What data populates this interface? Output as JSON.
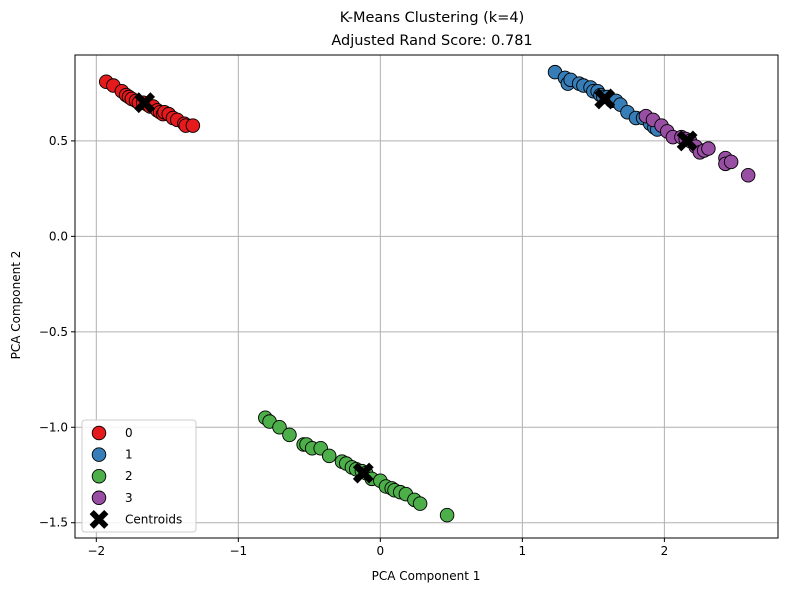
{
  "chart_data": {
    "type": "scatter",
    "title": "K-Means Clustering (k=4)",
    "subtitle": "Adjusted Rand Score: 0.781",
    "xlabel": "PCA Component 1",
    "ylabel": "PCA Component 2",
    "xlim": [
      -2.15,
      2.8
    ],
    "ylim": [
      -1.58,
      0.95
    ],
    "xticks": [
      -2,
      -1,
      0,
      1,
      2
    ],
    "yticks": [
      -1.5,
      -1.0,
      -0.5,
      0.0,
      0.5
    ],
    "xtick_labels": [
      "−2",
      "−1",
      "0",
      "1",
      "2"
    ],
    "ytick_labels": [
      "−1.5",
      "−1.0",
      "−0.5",
      "0.0",
      "0.5"
    ],
    "grid": true,
    "legend_position": "lower-left",
    "series": [
      {
        "name": "0",
        "color": "#e41a1c",
        "points": [
          [
            -1.93,
            0.81
          ],
          [
            -1.88,
            0.79
          ],
          [
            -1.82,
            0.76
          ],
          [
            -1.79,
            0.74
          ],
          [
            -1.77,
            0.73
          ],
          [
            -1.75,
            0.72
          ],
          [
            -1.72,
            0.71
          ],
          [
            -1.7,
            0.7
          ],
          [
            -1.67,
            0.7
          ],
          [
            -1.64,
            0.69
          ],
          [
            -1.62,
            0.68
          ],
          [
            -1.6,
            0.68
          ],
          [
            -1.57,
            0.66
          ],
          [
            -1.55,
            0.65
          ],
          [
            -1.53,
            0.64
          ],
          [
            -1.52,
            0.65
          ],
          [
            -1.49,
            0.64
          ],
          [
            -1.46,
            0.62
          ],
          [
            -1.43,
            0.61
          ],
          [
            -1.38,
            0.59
          ],
          [
            -1.37,
            0.58
          ],
          [
            -1.32,
            0.58
          ]
        ]
      },
      {
        "name": "1",
        "color": "#377eb8",
        "points": [
          [
            1.23,
            0.86
          ],
          [
            1.3,
            0.83
          ],
          [
            1.32,
            0.8
          ],
          [
            1.34,
            0.82
          ],
          [
            1.4,
            0.8
          ],
          [
            1.43,
            0.79
          ],
          [
            1.48,
            0.78
          ],
          [
            1.5,
            0.76
          ],
          [
            1.53,
            0.76
          ],
          [
            1.55,
            0.74
          ],
          [
            1.57,
            0.73
          ],
          [
            1.6,
            0.73
          ],
          [
            1.63,
            0.71
          ],
          [
            1.66,
            0.71
          ],
          [
            1.69,
            0.69
          ],
          [
            1.74,
            0.65
          ],
          [
            1.8,
            0.62
          ],
          [
            1.85,
            0.62
          ],
          [
            1.9,
            0.59
          ],
          [
            1.93,
            0.57
          ],
          [
            1.95,
            0.56
          ]
        ]
      },
      {
        "name": "2",
        "color": "#4daf4a",
        "points": [
          [
            -0.81,
            -0.95
          ],
          [
            -0.78,
            -0.97
          ],
          [
            -0.71,
            -1.0
          ],
          [
            -0.64,
            -1.04
          ],
          [
            -0.54,
            -1.09
          ],
          [
            -0.52,
            -1.09
          ],
          [
            -0.48,
            -1.11
          ],
          [
            -0.42,
            -1.11
          ],
          [
            -0.36,
            -1.15
          ],
          [
            -0.27,
            -1.18
          ],
          [
            -0.24,
            -1.19
          ],
          [
            -0.2,
            -1.21
          ],
          [
            -0.17,
            -1.22
          ],
          [
            -0.13,
            -1.23
          ],
          [
            -0.1,
            -1.24
          ],
          [
            -0.06,
            -1.27
          ],
          [
            0.0,
            -1.28
          ],
          [
            0.04,
            -1.31
          ],
          [
            0.08,
            -1.32
          ],
          [
            0.1,
            -1.33
          ],
          [
            0.14,
            -1.34
          ],
          [
            0.18,
            -1.35
          ],
          [
            0.24,
            -1.38
          ],
          [
            0.28,
            -1.4
          ],
          [
            0.47,
            -1.46
          ]
        ]
      },
      {
        "name": "3",
        "color": "#984ea3",
        "points": [
          [
            1.87,
            0.63
          ],
          [
            1.92,
            0.61
          ],
          [
            1.98,
            0.58
          ],
          [
            2.02,
            0.55
          ],
          [
            2.06,
            0.52
          ],
          [
            2.12,
            0.52
          ],
          [
            2.15,
            0.51
          ],
          [
            2.18,
            0.5
          ],
          [
            2.22,
            0.47
          ],
          [
            2.25,
            0.44
          ],
          [
            2.28,
            0.45
          ],
          [
            2.31,
            0.46
          ],
          [
            2.43,
            0.41
          ],
          [
            2.43,
            0.38
          ],
          [
            2.47,
            0.39
          ],
          [
            2.59,
            0.32
          ]
        ]
      }
    ],
    "centroids": {
      "name": "Centroids",
      "color": "#000000",
      "points": [
        [
          -1.66,
          0.7
        ],
        [
          1.58,
          0.72
        ],
        [
          -0.12,
          -1.24
        ],
        [
          2.16,
          0.5
        ]
      ]
    }
  }
}
